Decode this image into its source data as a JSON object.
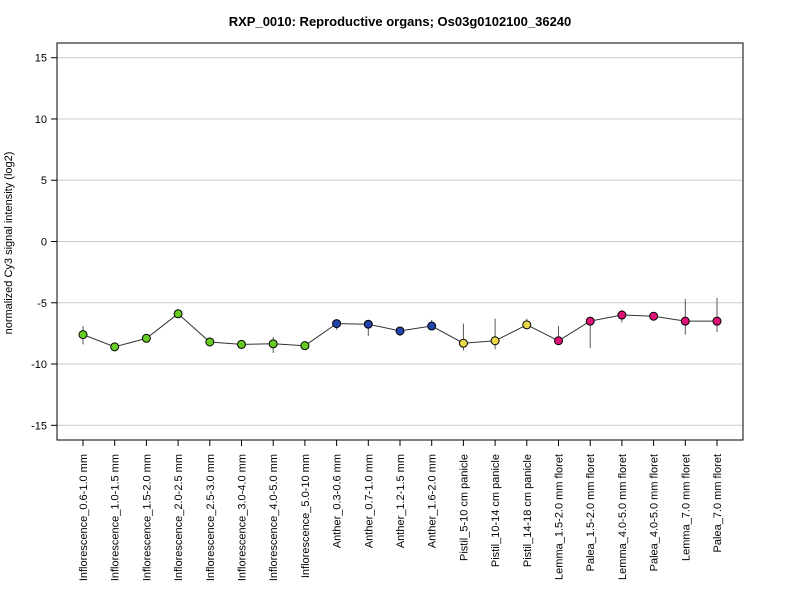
{
  "chart_data": {
    "type": "line",
    "title": "RXP_0010: Reproductive organs; Os03g0102100_36240",
    "xlabel": "",
    "ylabel": "normalized Cy3 signal intensity (log2)",
    "ylim": [
      -16.2,
      16.2
    ],
    "yticks": [
      -15,
      -10,
      -5,
      0,
      5,
      10,
      15
    ],
    "grid": true,
    "colors": {
      "green": "#66cc22",
      "blue": "#2244aa",
      "yellow": "#e8d84a",
      "magenta": "#dd1177",
      "line": "#333333",
      "grid": "#cccccc"
    },
    "categories": [
      "Inflorescence_0.6-1.0 mm",
      "Inflorescence_1.0-1.5 mm",
      "Inflorescence_1.5-2.0 mm",
      "Inflorescence_2.0-2.5 mm",
      "Inflorescence_2.5-3.0 mm",
      "Inflorescence_3.0-4.0 mm",
      "Inflorescence_4.0-5.0 mm",
      "Inflorescence_5.0-10 mm",
      "Anther_0.3-0.6 mm",
      "Anther_0.7-1.0 mm",
      "Anther_1.2-1.5 mm",
      "Anther_1.6-2.0 mm",
      "Pistil_5-10 cm panicle",
      "Pistil_10-14 cm panicle",
      "Pistil_14-18 cm panicle",
      "Lemma_1.5-2.0 mm floret",
      "Palea_1.5-2.0 mm floret",
      "Lemma_4.0-5.0 mm floret",
      "Palea_4.0-5.0 mm floret",
      "Lemma_7.0 mm floret",
      "Palea_7.0 mm floret"
    ],
    "values": [
      -7.6,
      -8.6,
      -7.9,
      -5.9,
      -8.2,
      -8.4,
      -8.35,
      -8.5,
      -6.7,
      -6.75,
      -7.3,
      -6.9,
      -8.3,
      -8.1,
      -6.8,
      -8.1,
      -6.5,
      -6.0,
      -6.1,
      -6.5,
      -6.5
    ],
    "error_low": [
      -8.4,
      -8.8,
      -8.1,
      -6.0,
      -8.5,
      -8.7,
      -9.1,
      -8.7,
      -7.2,
      -7.7,
      -7.7,
      -7.2,
      -8.9,
      -8.8,
      -7.1,
      -8.2,
      -8.7,
      -6.6,
      -6.3,
      -7.6,
      -7.4
    ],
    "error_high": [
      -6.9,
      -8.4,
      -7.6,
      -5.7,
      -7.9,
      -8.1,
      -7.8,
      -8.3,
      -6.4,
      -6.4,
      -7.0,
      -6.4,
      -6.7,
      -6.3,
      -6.3,
      -6.9,
      -6.3,
      -5.6,
      -5.9,
      -4.7,
      -4.6
    ],
    "point_colors": [
      "#66cc22",
      "#66cc22",
      "#66cc22",
      "#66cc22",
      "#66cc22",
      "#66cc22",
      "#66cc22",
      "#66cc22",
      "#2244aa",
      "#2244aa",
      "#2244aa",
      "#2244aa",
      "#e8d84a",
      "#e8d84a",
      "#e8d84a",
      "#dd1177",
      "#dd1177",
      "#dd1177",
      "#dd1177",
      "#dd1177",
      "#dd1177"
    ]
  }
}
